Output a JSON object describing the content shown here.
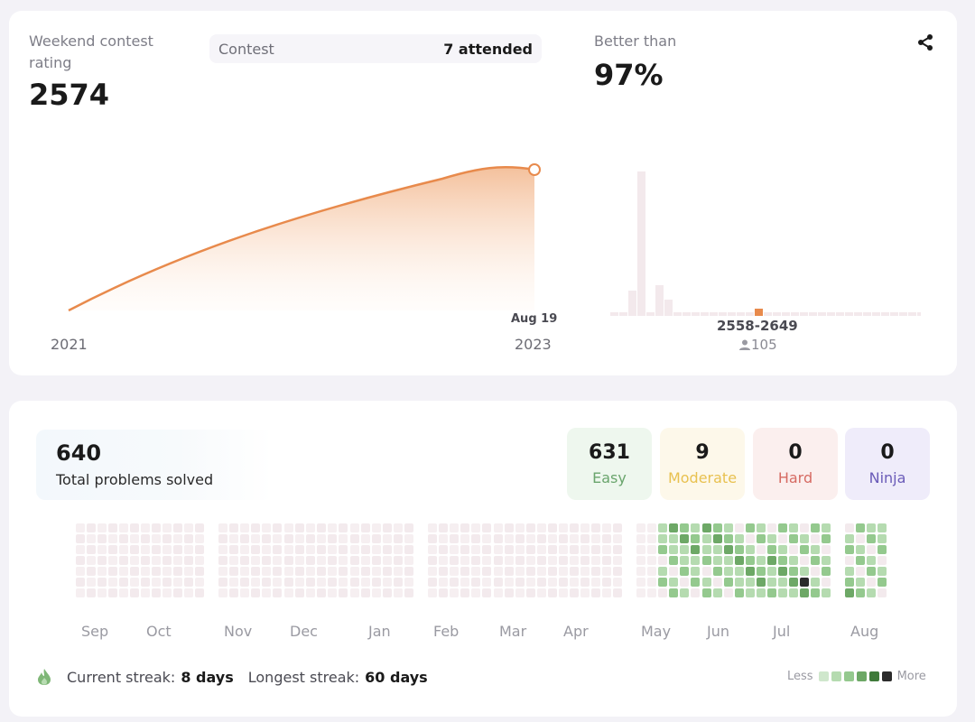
{
  "rating_card": {
    "rating_label": "Weekend contest rating",
    "rating_value": "2574",
    "contest_label": "Contest",
    "contest_value": "7 attended",
    "better_label": "Better than",
    "better_value": "97%",
    "share_icon": "share-icon",
    "x_start_label": "2021",
    "x_end_label": "2023",
    "last_point_label": "Aug 19",
    "histogram_range_label": "2558-2649",
    "histogram_count": "105",
    "user_icon": "user-icon",
    "accent_color": "#e88a4c"
  },
  "problems_card": {
    "total_value": "640",
    "total_label": "Total problems solved",
    "difficulties": [
      {
        "value": "631",
        "label": "Easy",
        "bg": "#eef7ee",
        "color": "#6aa56d"
      },
      {
        "value": "9",
        "label": "Moderate",
        "bg": "#fdf8ea",
        "color": "#e8c150"
      },
      {
        "value": "0",
        "label": "Hard",
        "bg": "#fbefee",
        "color": "#d66b63"
      },
      {
        "value": "0",
        "label": "Ninja",
        "bg": "#efecfa",
        "color": "#6a5bb8"
      }
    ],
    "months": [
      "Sep",
      "Oct",
      "Nov",
      "Dec",
      "Jan",
      "Feb",
      "Mar",
      "Apr",
      "May",
      "Jun",
      "Jul",
      "Aug"
    ],
    "streak_icon": "flame-icon",
    "current_streak_label": "Current streak:",
    "current_streak_value": "8 days",
    "longest_streak_label": "Longest streak:",
    "longest_streak_value": "60 days",
    "legend_less": "Less",
    "legend_more": "More",
    "legend_colors": [
      "#cfe7cc",
      "#b5dbb0",
      "#94c98e",
      "#6da866",
      "#3f7a3a",
      "#2b2b2b"
    ]
  },
  "chart_data": [
    {
      "type": "line",
      "title": "Weekend contest rating",
      "x": [
        "2021",
        "Aug 19 2023"
      ],
      "xlabel": "",
      "ylabel": "",
      "series": [
        {
          "values": [
            null,
            2574
          ]
        }
      ],
      "notes": "Rating rises smoothly from 2021 to 2574 at Aug 19 2023"
    },
    {
      "type": "bar",
      "title": "",
      "categories": [
        "2558-2649"
      ],
      "values": [
        105
      ],
      "highlight": "2558-2649"
    }
  ]
}
